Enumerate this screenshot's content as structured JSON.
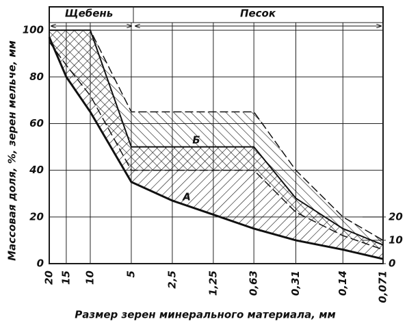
{
  "chart_data": {
    "type": "band",
    "sections": [
      "Щебень",
      "Песок"
    ],
    "xlabel": "Размер зерен минерального материала, мм",
    "ylabel": "Массовая доля, %, зерен мельче, мм",
    "annotations": [
      "А",
      "Б"
    ],
    "x": [
      20,
      15,
      10,
      5,
      2.5,
      1.25,
      0.63,
      0.31,
      0.14,
      0.071
    ],
    "xlim": [
      20,
      0.071
    ],
    "xscale": "log",
    "xticks": [
      20,
      15,
      10,
      5,
      {
        "value": 2.5,
        "label": "2,5"
      },
      {
        "value": 1.25,
        "label": "1,25"
      },
      {
        "value": 0.63,
        "label": "0,63"
      },
      {
        "value": 0.31,
        "label": "0,31"
      },
      {
        "value": 0.14,
        "label": "0,14"
      },
      {
        "value": 0.071,
        "label": "0,071"
      }
    ],
    "ylim": [
      0,
      110
    ],
    "yticks": [
      0,
      20,
      40,
      60,
      80,
      100
    ],
    "y2lim": [
      0,
      110
    ],
    "y2ticks": [
      0,
      10,
      20
    ],
    "grid": true,
    "series": [
      {
        "color": "#111111",
        "dashed": false,
        "values": [
          97,
          80,
          65,
          35,
          27,
          21,
          15,
          10,
          6,
          2
        ]
      },
      {
        "color": "#111111",
        "dashed": false,
        "values": [
          100,
          100,
          100,
          50,
          50,
          50,
          50,
          28,
          15,
          8
        ]
      },
      {
        "color": "#111111",
        "dashed": true,
        "values": [
          95,
          85,
          72,
          40,
          40,
          40,
          40,
          22,
          12,
          6
        ]
      },
      {
        "color": "#111111",
        "dashed": true,
        "values": [
          100,
          100,
          100,
          65,
          65,
          65,
          65,
          40,
          20,
          10
        ]
      }
    ],
    "zones": [
      {
        "lower": 0,
        "upper": 1,
        "hatch": "hatchA"
      },
      {
        "lower": 2,
        "upper": 3,
        "hatch": "hatchB"
      }
    ]
  }
}
